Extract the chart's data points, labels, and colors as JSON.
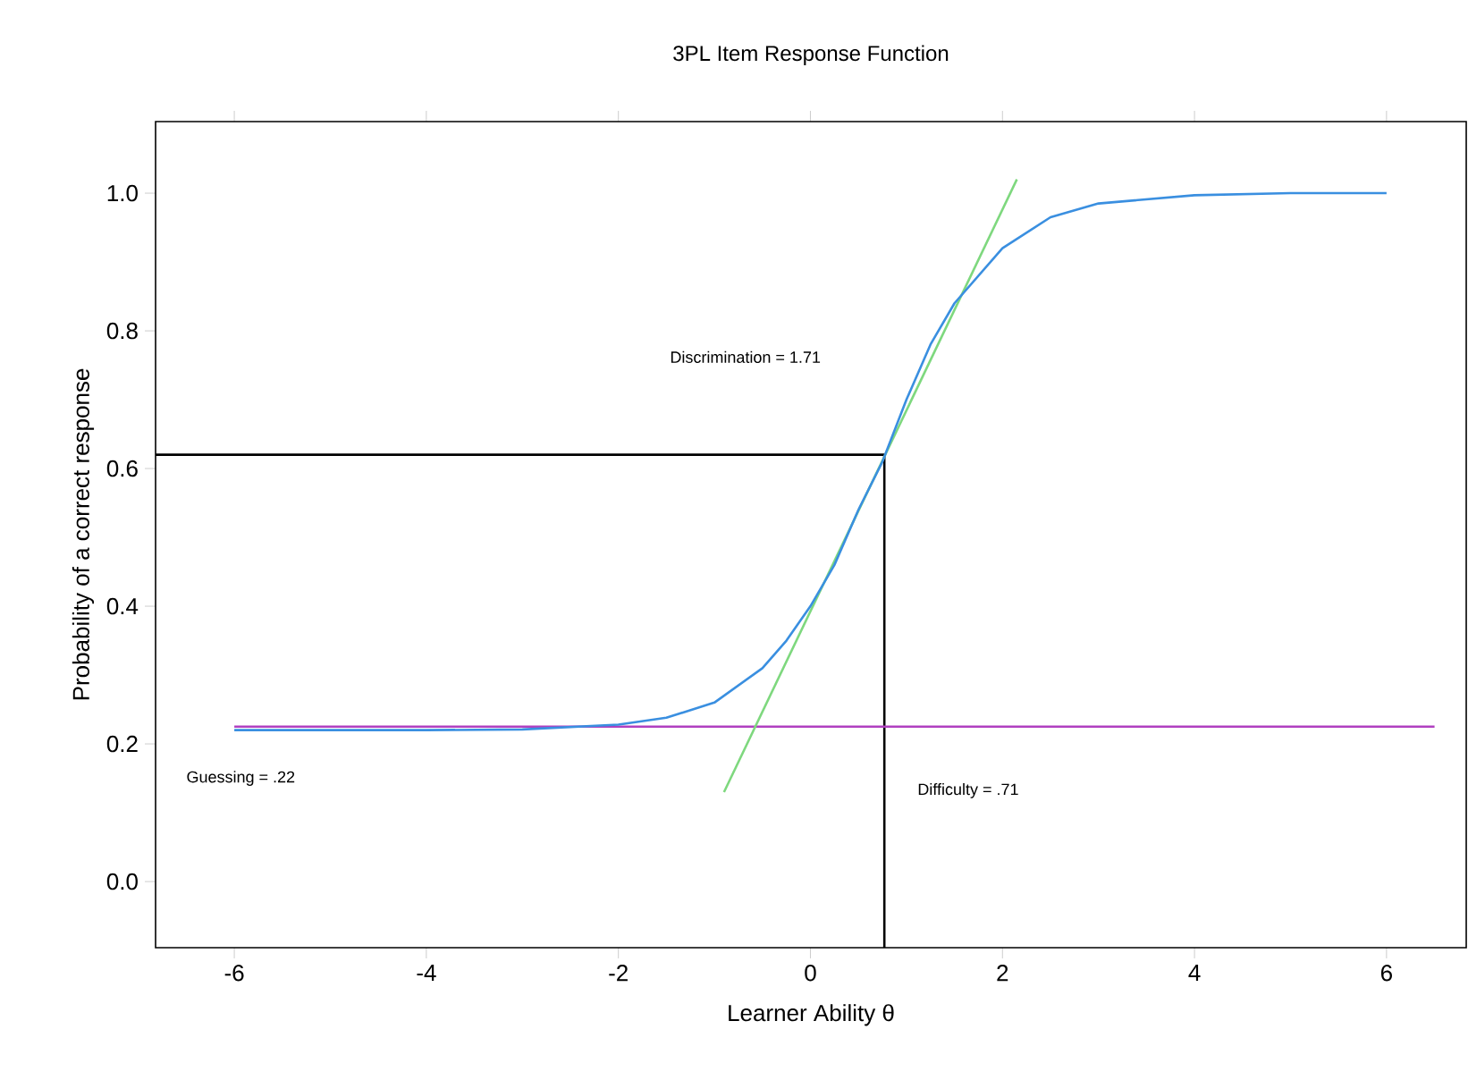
{
  "chart_data": {
    "type": "line",
    "title": "3PL Item Response Function",
    "xlabel": "Learner Ability θ",
    "ylabel": "Probability of a correct response",
    "xlim": [
      -6.82,
      6.83
    ],
    "ylim": [
      -0.096,
      1.104
    ],
    "xticks": [
      -6,
      -4,
      -2,
      0,
      2,
      4,
      6
    ],
    "yticks": [
      {
        "value": 0,
        "label": "0.0"
      },
      {
        "value": 0.2,
        "label": "0.2"
      },
      {
        "value": 0.4,
        "label": "0.4"
      },
      {
        "value": 0.6,
        "label": "0.6"
      },
      {
        "value": 0.8,
        "label": "0.8"
      },
      {
        "value": 1,
        "label": "1.0"
      }
    ],
    "series": [
      {
        "color": "#000000",
        "x": [
          -6.82,
          0.77
        ],
        "values": [
          0.62,
          0.62
        ]
      },
      {
        "color": "#000000",
        "x": [
          0.77,
          0.77
        ],
        "values": [
          -0.096,
          0.62
        ]
      },
      {
        "color": "#b040c0",
        "x": [
          -6,
          6.5
        ],
        "values": [
          0.225,
          0.225
        ]
      },
      {
        "color": "#7ed87e",
        "x": [
          -0.9,
          2.15
        ],
        "values": [
          0.13,
          1.02
        ]
      },
      {
        "color": "#3a8fe0",
        "x": [
          -6,
          -4,
          -3,
          -2,
          -1.5,
          -1,
          -0.5,
          -0.25,
          0,
          0.25,
          0.5,
          0.75,
          1,
          1.25,
          1.5,
          2,
          2.5,
          3,
          4,
          5,
          6
        ],
        "values": [
          0.22,
          0.22,
          0.221,
          0.228,
          0.238,
          0.26,
          0.31,
          0.35,
          0.4,
          0.46,
          0.54,
          0.61,
          0.7,
          0.78,
          0.84,
          0.92,
          0.965,
          0.985,
          0.997,
          1.0,
          1.0
        ]
      }
    ],
    "annotations": [
      "Discrimination = 1.71",
      "Guessing = .22",
      "Difficulty = .71"
    ]
  }
}
